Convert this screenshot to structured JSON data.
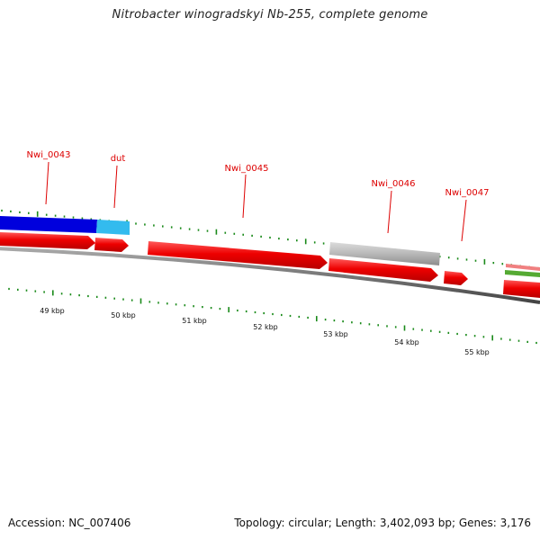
{
  "title": "Nitrobacter winogradskyi Nb-255, complete genome",
  "footer": {
    "accession": "Accession: NC_007406",
    "summary": "Topology: circular; Length: 3,402,093 bp; Genes: 3,176"
  },
  "colors": {
    "gene_label": "#dd0000",
    "tick": "#1a8a1a",
    "backbone": "#777777",
    "forward_feature": "#0000dd",
    "forward_feature_2": "#33bbee",
    "cds": "#ee0000",
    "grey_feature": "#b8b8b8"
  },
  "gene_labels": [
    "Nwi_0043",
    "dut",
    "Nwi_0045",
    "Nwi_0046",
    "Nwi_0047"
  ],
  "scale_labels": [
    "49 kbp",
    "50 kbp",
    "51 kbp",
    "52 kbp",
    "53 kbp",
    "54 kbp",
    "55 kbp"
  ]
}
